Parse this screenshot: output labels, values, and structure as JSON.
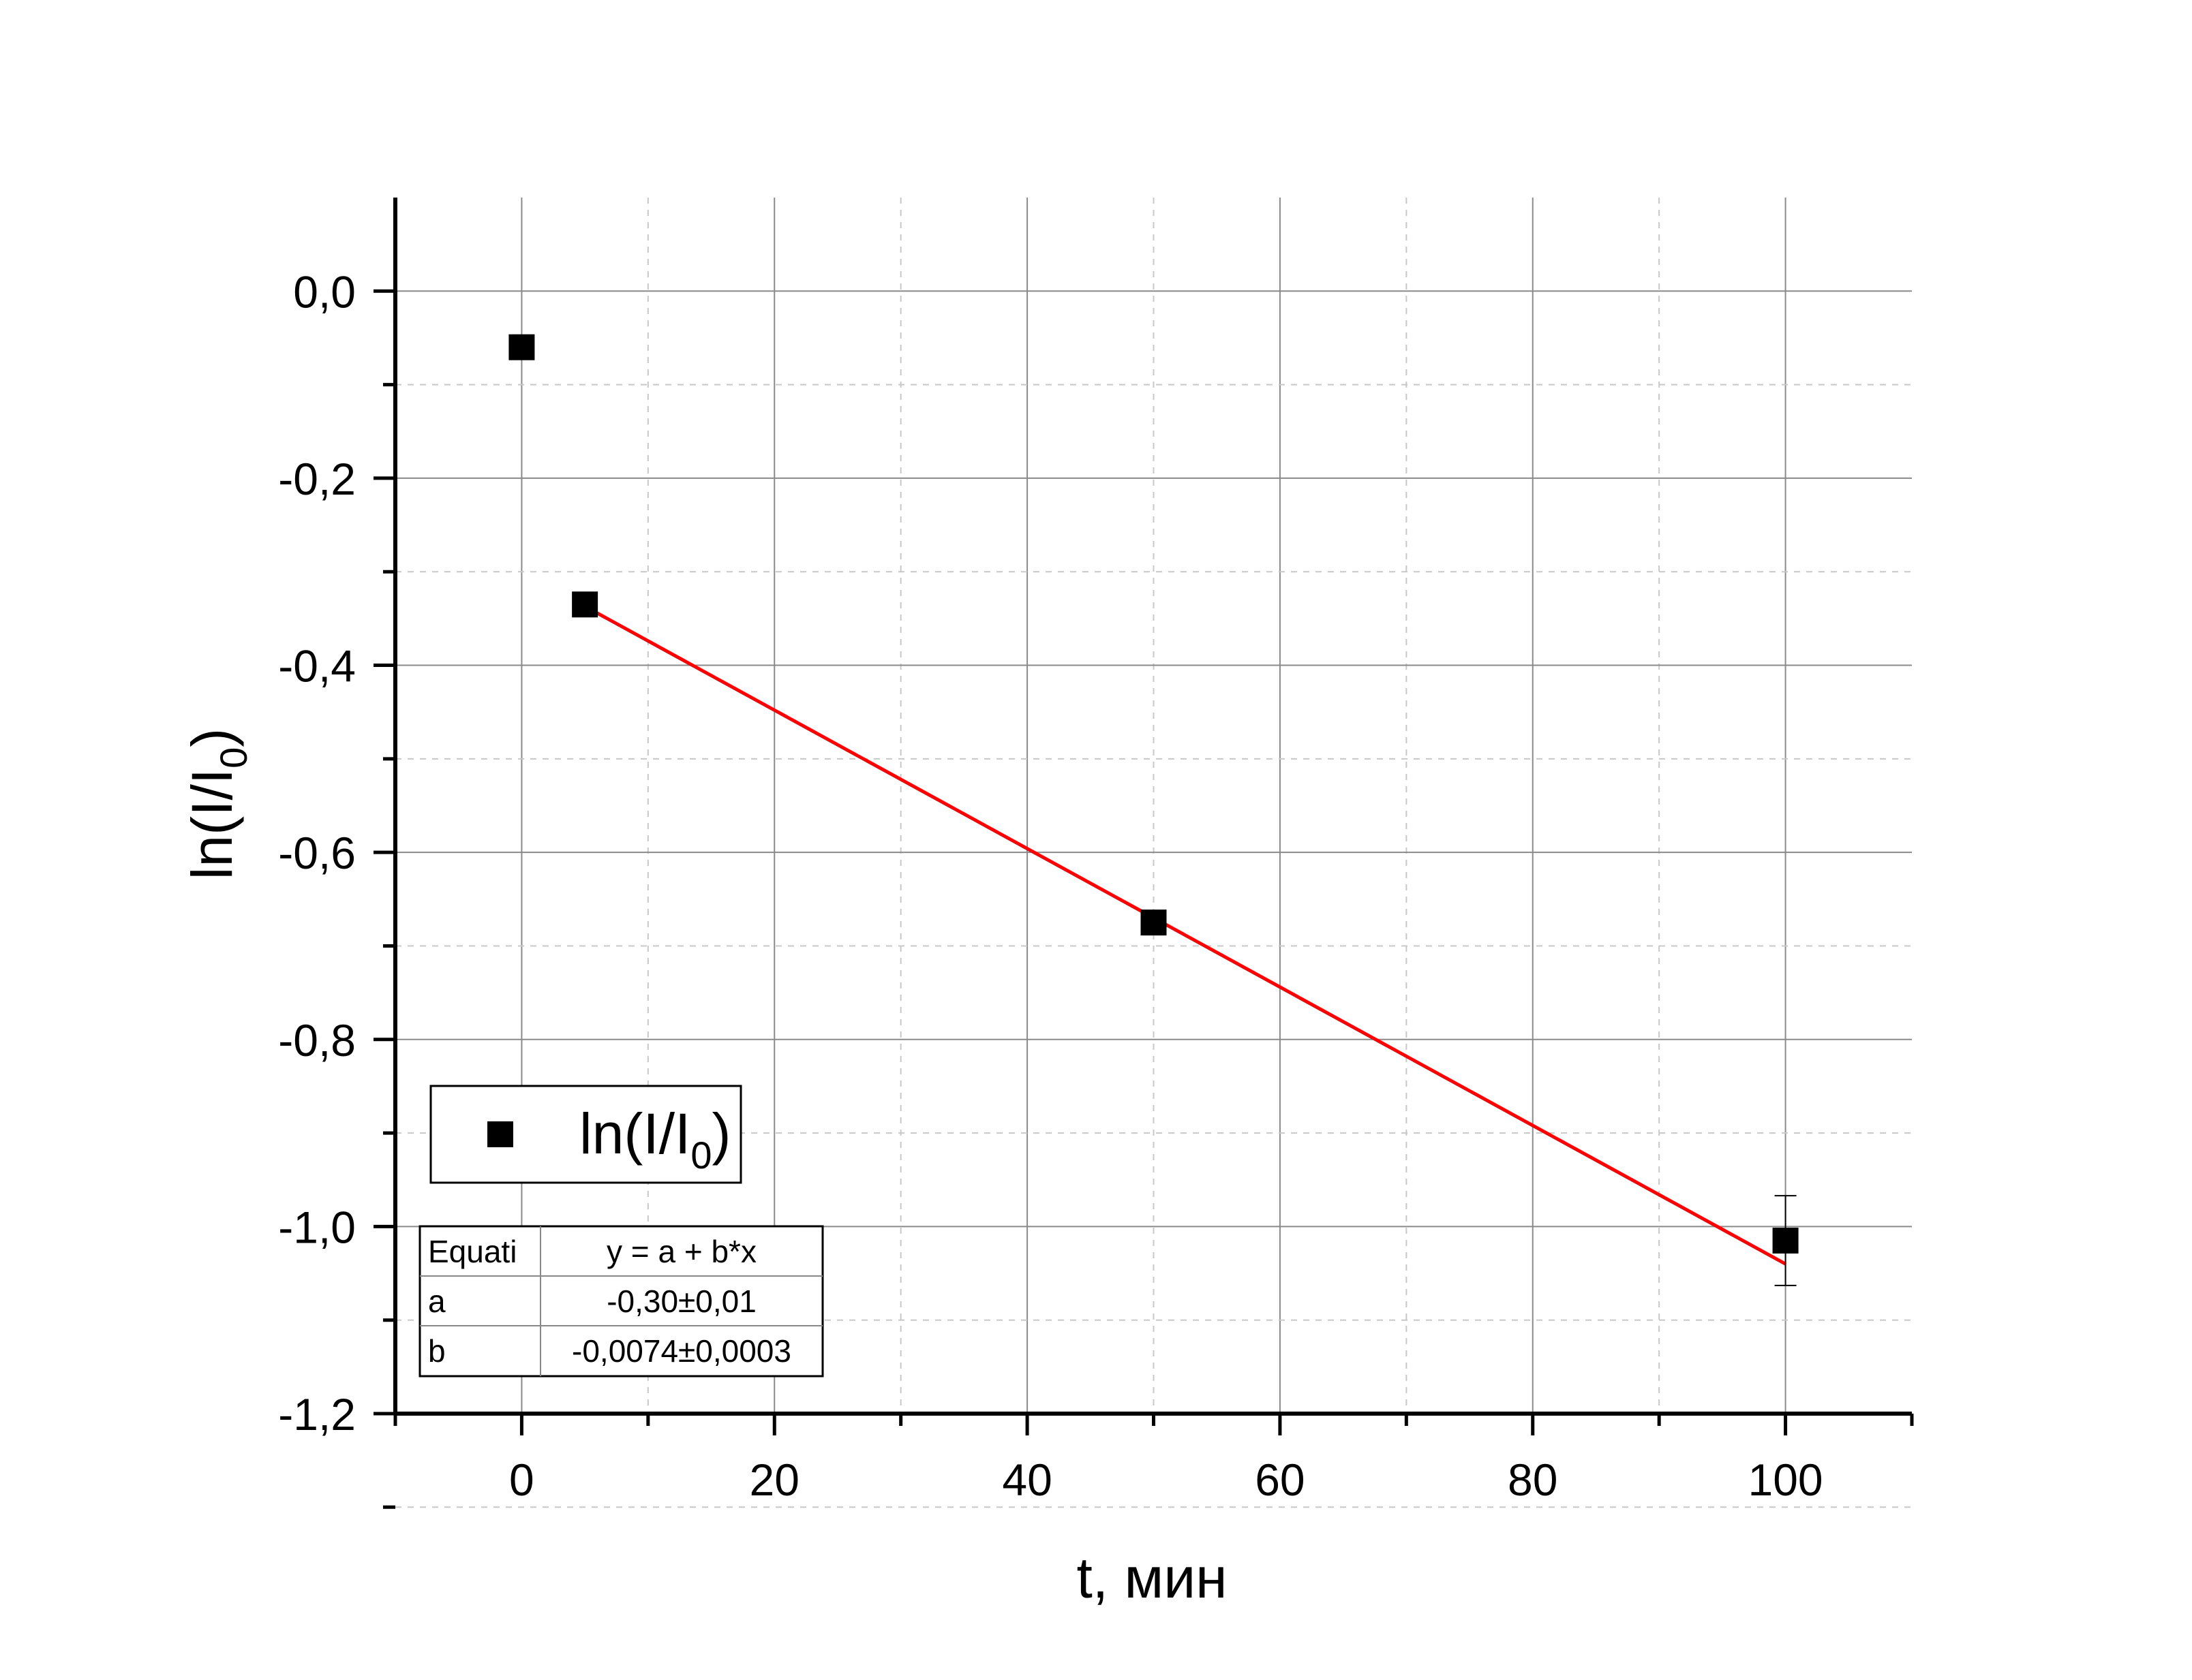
{
  "chart_data": {
    "type": "scatter",
    "xlabel": "t, мин",
    "ylabel": "ln(I/I0)",
    "xlim": [
      -10,
      110
    ],
    "ylim": [
      -1.2,
      0.1
    ],
    "x_ticks": [
      0,
      20,
      40,
      60,
      80,
      100
    ],
    "x_tick_labels": [
      "0",
      "20",
      "40",
      "60",
      "80",
      "100"
    ],
    "y_ticks": [
      0.0,
      -0.2,
      -0.4,
      -0.6,
      -0.8,
      -1.0,
      -1.2
    ],
    "y_tick_labels": [
      "0,0",
      "-0,2",
      "-0,4",
      "-0,6",
      "-0,8",
      "-1,0",
      "-1,2"
    ],
    "grid": true,
    "series": [
      {
        "name": "ln(I/I0)",
        "marker": "square",
        "color": "#000000",
        "x": [
          0,
          5,
          50,
          100
        ],
        "y": [
          -0.06,
          -0.335,
          -0.675,
          -1.015
        ],
        "y_error": [
          null,
          null,
          null,
          0.048
        ]
      }
    ],
    "fit_line": {
      "color": "#ff0000",
      "x_start": 5,
      "x_end": 100,
      "a": -0.3,
      "b": -0.0074
    },
    "legend": {
      "position": "bottom-left",
      "label_main": "ln(I/I",
      "label_sub": "0",
      "label_close": ")"
    },
    "fit_table": {
      "rows": [
        [
          "Equati",
          "y = a + b*x"
        ],
        [
          "a",
          "-0,30±0,01"
        ],
        [
          "b",
          "-0,0074±0,0003"
        ]
      ]
    }
  }
}
